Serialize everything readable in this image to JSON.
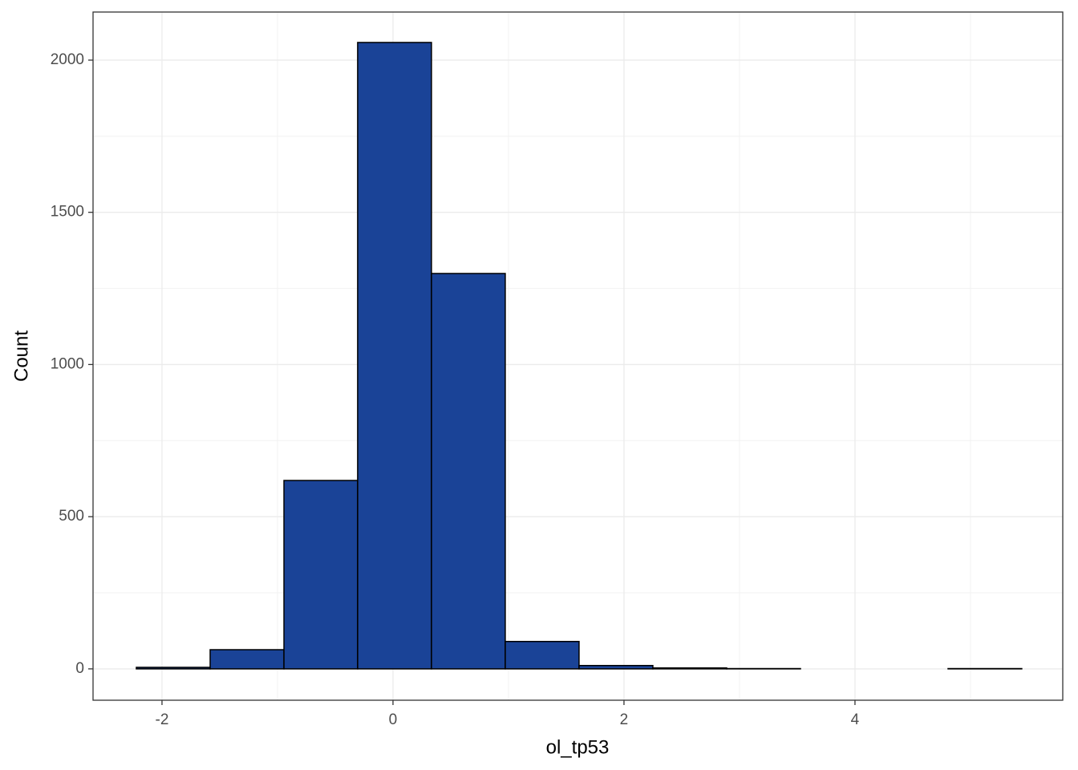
{
  "chart_data": {
    "type": "histogram",
    "x_label": "ol_tp53",
    "y_label": "Count",
    "bins": [
      -2.222,
      -1.583,
      -0.944,
      -0.306,
      0.333,
      0.972,
      1.611,
      2.25,
      2.889,
      3.528,
      4.167,
      4.806,
      5.444
    ],
    "values": [
      5,
      63,
      619,
      2058,
      1299,
      90,
      11,
      3,
      1,
      0,
      0,
      1
    ],
    "color": "#1a4397",
    "xlim": [
      -2.597,
      5.799
    ],
    "ylim": [
      -103,
      2158
    ],
    "xticks": [
      -2,
      0,
      2,
      4
    ],
    "yticks": [
      0,
      500,
      1000,
      1500,
      2000
    ],
    "grid": true
  }
}
